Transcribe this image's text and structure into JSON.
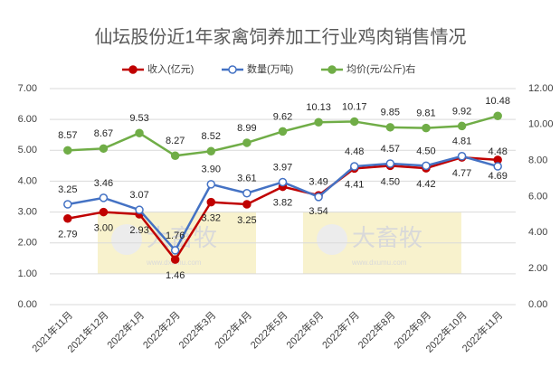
{
  "chart_data": {
    "type": "line",
    "title": "仙坛股份近1年家禽饲养加工行业鸡肉销售情况",
    "categories": [
      "2021年11月",
      "2021年12月",
      "2022年1月",
      "2022年2月",
      "2022年3月",
      "2022年4月",
      "2022年5月",
      "2022年6月",
      "2022年7月",
      "2022年8月",
      "2022年9月",
      "2022年10月",
      "2022年11月"
    ],
    "series": [
      {
        "name": "收入(亿元)",
        "color": "#c00000",
        "marker": "filled",
        "values": [
          2.79,
          3.0,
          2.93,
          1.46,
          3.32,
          3.25,
          3.82,
          3.54,
          4.41,
          4.5,
          4.42,
          4.77,
          4.69
        ],
        "value_labels": [
          "2.79",
          "3.00",
          "2.93",
          "1.46",
          "3.32",
          "3.25",
          "3.82",
          "3.54",
          "4.41",
          "4.50",
          "4.42",
          "4.77",
          "4.69"
        ]
      },
      {
        "name": "数量(万吨)",
        "color": "#4472c4",
        "marker": "hollow",
        "values": [
          3.25,
          3.46,
          3.07,
          1.76,
          3.9,
          3.61,
          3.97,
          3.49,
          4.48,
          4.57,
          4.5,
          4.81,
          4.48
        ],
        "value_labels": [
          "3.25",
          "3.46",
          "3.07",
          "1.76",
          "3.90",
          "3.61",
          "3.97",
          "3.49",
          "4.48",
          "4.57",
          "4.50",
          "4.81",
          "4.48"
        ]
      },
      {
        "name": "均价(元/公斤)右",
        "color": "#70ad47",
        "marker": "filled",
        "axis": "y2",
        "values": [
          8.57,
          8.67,
          9.53,
          8.27,
          8.52,
          8.99,
          9.62,
          10.13,
          10.17,
          9.85,
          9.81,
          9.92,
          10.48
        ],
        "value_labels": [
          "8.57",
          "8.67",
          "9.53",
          "8.27",
          "8.52",
          "8.99",
          "9.62",
          "10.13",
          "10.17",
          "9.85",
          "9.81",
          "9.92",
          "10.48"
        ]
      }
    ],
    "ylim": [
      0,
      7
    ],
    "yticks": [
      {
        "value": 0,
        "label": "0.00"
      },
      {
        "value": 1,
        "label": "1.00"
      },
      {
        "value": 2,
        "label": "2.00"
      },
      {
        "value": 3,
        "label": "3.00"
      },
      {
        "value": 4,
        "label": "4.00"
      },
      {
        "value": 5,
        "label": "5.00"
      },
      {
        "value": 6,
        "label": "6.00"
      },
      {
        "value": 7,
        "label": "7.00"
      }
    ],
    "y2lim": [
      0,
      12
    ],
    "y2ticks": [
      {
        "value": 0,
        "label": "0.00"
      },
      {
        "value": 2,
        "label": "2.00"
      },
      {
        "value": 4,
        "label": "4.00"
      },
      {
        "value": 6,
        "label": "6.00"
      },
      {
        "value": 8,
        "label": "8.00"
      },
      {
        "value": 10,
        "label": "10.00"
      },
      {
        "value": 12,
        "label": "12.00"
      }
    ],
    "grid": true,
    "legend": "top",
    "watermarks": [
      "大畜牧",
      "www.dxumu.com"
    ]
  }
}
